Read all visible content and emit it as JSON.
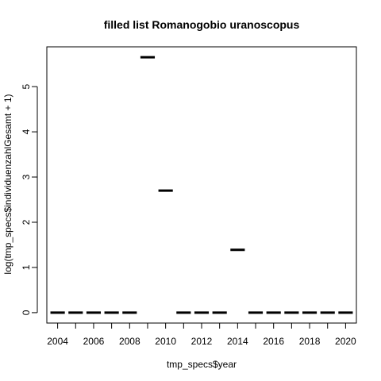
{
  "chart_data": {
    "type": "boxplot",
    "title": "filled list Romanogobio uranoscopus",
    "xlabel": "tmp_specs$year",
    "ylabel": "log(tmp_specs$individuenzahlGesamt + 1)",
    "categories": [
      "2004",
      "2005",
      "2006",
      "2007",
      "2008",
      "2009",
      "2010",
      "2011",
      "2012",
      "2013",
      "2014",
      "2015",
      "2016",
      "2017",
      "2018",
      "2019",
      "2020"
    ],
    "values": [
      0,
      0,
      0,
      0,
      0,
      5.65,
      2.7,
      0,
      0,
      0,
      1.39,
      0,
      0,
      0,
      0,
      0,
      0
    ],
    "x_tick_labels": [
      "2004",
      "2006",
      "2008",
      "2010",
      "2012",
      "2014",
      "2016",
      "2018",
      "2020"
    ],
    "y_ticks": [
      0,
      1,
      2,
      3,
      4,
      5
    ],
    "ylim": [
      -0.23,
      5.88
    ],
    "grid": false,
    "legend": "none"
  }
}
